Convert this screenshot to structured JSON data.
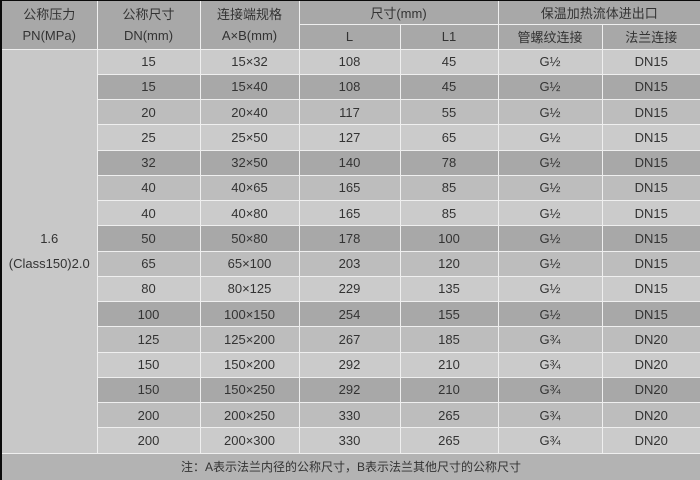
{
  "table": {
    "header": {
      "pressure": {
        "line1": "公称压力",
        "line2": "PN(MPa)"
      },
      "size": {
        "line1": "公称尺寸",
        "line2": "DN(mm)"
      },
      "connection": {
        "line1": "连接端规格",
        "line2": "A×B(mm)"
      },
      "dimensions": "尺寸(mm)",
      "dimensions_sub": [
        "L",
        "L1"
      ],
      "inlet": "保温加热流体进出口",
      "inlet_sub": [
        "管螺纹连接",
        "法兰连接"
      ]
    },
    "pressure_cell": {
      "line1": "1.6",
      "line2": "(Class150)2.0"
    },
    "columns_keys": [
      "dn",
      "ab",
      "l",
      "l1",
      "thread",
      "flange"
    ],
    "rows": [
      {
        "dn": "15",
        "ab": "15×32",
        "l": "108",
        "l1": "45",
        "thread": "G½",
        "flange": "DN15"
      },
      {
        "dn": "15",
        "ab": "15×40",
        "l": "108",
        "l1": "45",
        "thread": "G½",
        "flange": "DN15"
      },
      {
        "dn": "20",
        "ab": "20×40",
        "l": "117",
        "l1": "55",
        "thread": "G½",
        "flange": "DN15"
      },
      {
        "dn": "25",
        "ab": "25×50",
        "l": "127",
        "l1": "65",
        "thread": "G½",
        "flange": "DN15"
      },
      {
        "dn": "32",
        "ab": "32×50",
        "l": "140",
        "l1": "78",
        "thread": "G½",
        "flange": "DN15"
      },
      {
        "dn": "40",
        "ab": "40×65",
        "l": "165",
        "l1": "85",
        "thread": "G½",
        "flange": "DN15"
      },
      {
        "dn": "40",
        "ab": "40×80",
        "l": "165",
        "l1": "85",
        "thread": "G½",
        "flange": "DN15"
      },
      {
        "dn": "50",
        "ab": "50×80",
        "l": "178",
        "l1": "100",
        "thread": "G½",
        "flange": "DN15"
      },
      {
        "dn": "65",
        "ab": "65×100",
        "l": "203",
        "l1": "120",
        "thread": "G½",
        "flange": "DN15"
      },
      {
        "dn": "80",
        "ab": "80×125",
        "l": "229",
        "l1": "135",
        "thread": "G½",
        "flange": "DN15"
      },
      {
        "dn": "100",
        "ab": "100×150",
        "l": "254",
        "l1": "155",
        "thread": "G½",
        "flange": "DN15"
      },
      {
        "dn": "125",
        "ab": "125×200",
        "l": "267",
        "l1": "185",
        "thread": "G¾",
        "flange": "DN20"
      },
      {
        "dn": "150",
        "ab": "150×200",
        "l": "292",
        "l1": "210",
        "thread": "G¾",
        "flange": "DN20"
      },
      {
        "dn": "150",
        "ab": "150×250",
        "l": "292",
        "l1": "210",
        "thread": "G¾",
        "flange": "DN20"
      },
      {
        "dn": "200",
        "ab": "200×250",
        "l": "330",
        "l1": "265",
        "thread": "G¾",
        "flange": "DN20"
      },
      {
        "dn": "200",
        "ab": "200×300",
        "l": "330",
        "l1": "265",
        "thread": "G¾",
        "flange": "DN20"
      }
    ],
    "note": "注：A表示法兰内径的公称尺寸，B表示法兰其他尺寸的公称尺寸"
  },
  "colors": {
    "header_bg": "#a8a8a8",
    "row_light": "#cbcbcb",
    "row_medium": "#bdbdbd",
    "row_dark": "#a8a8a8",
    "pressure_bg": "#c8c8c8",
    "footer_bg": "#b3b3b3",
    "grid_line": "#efefef",
    "text": "#333333",
    "edge": "#0a0a0a"
  }
}
